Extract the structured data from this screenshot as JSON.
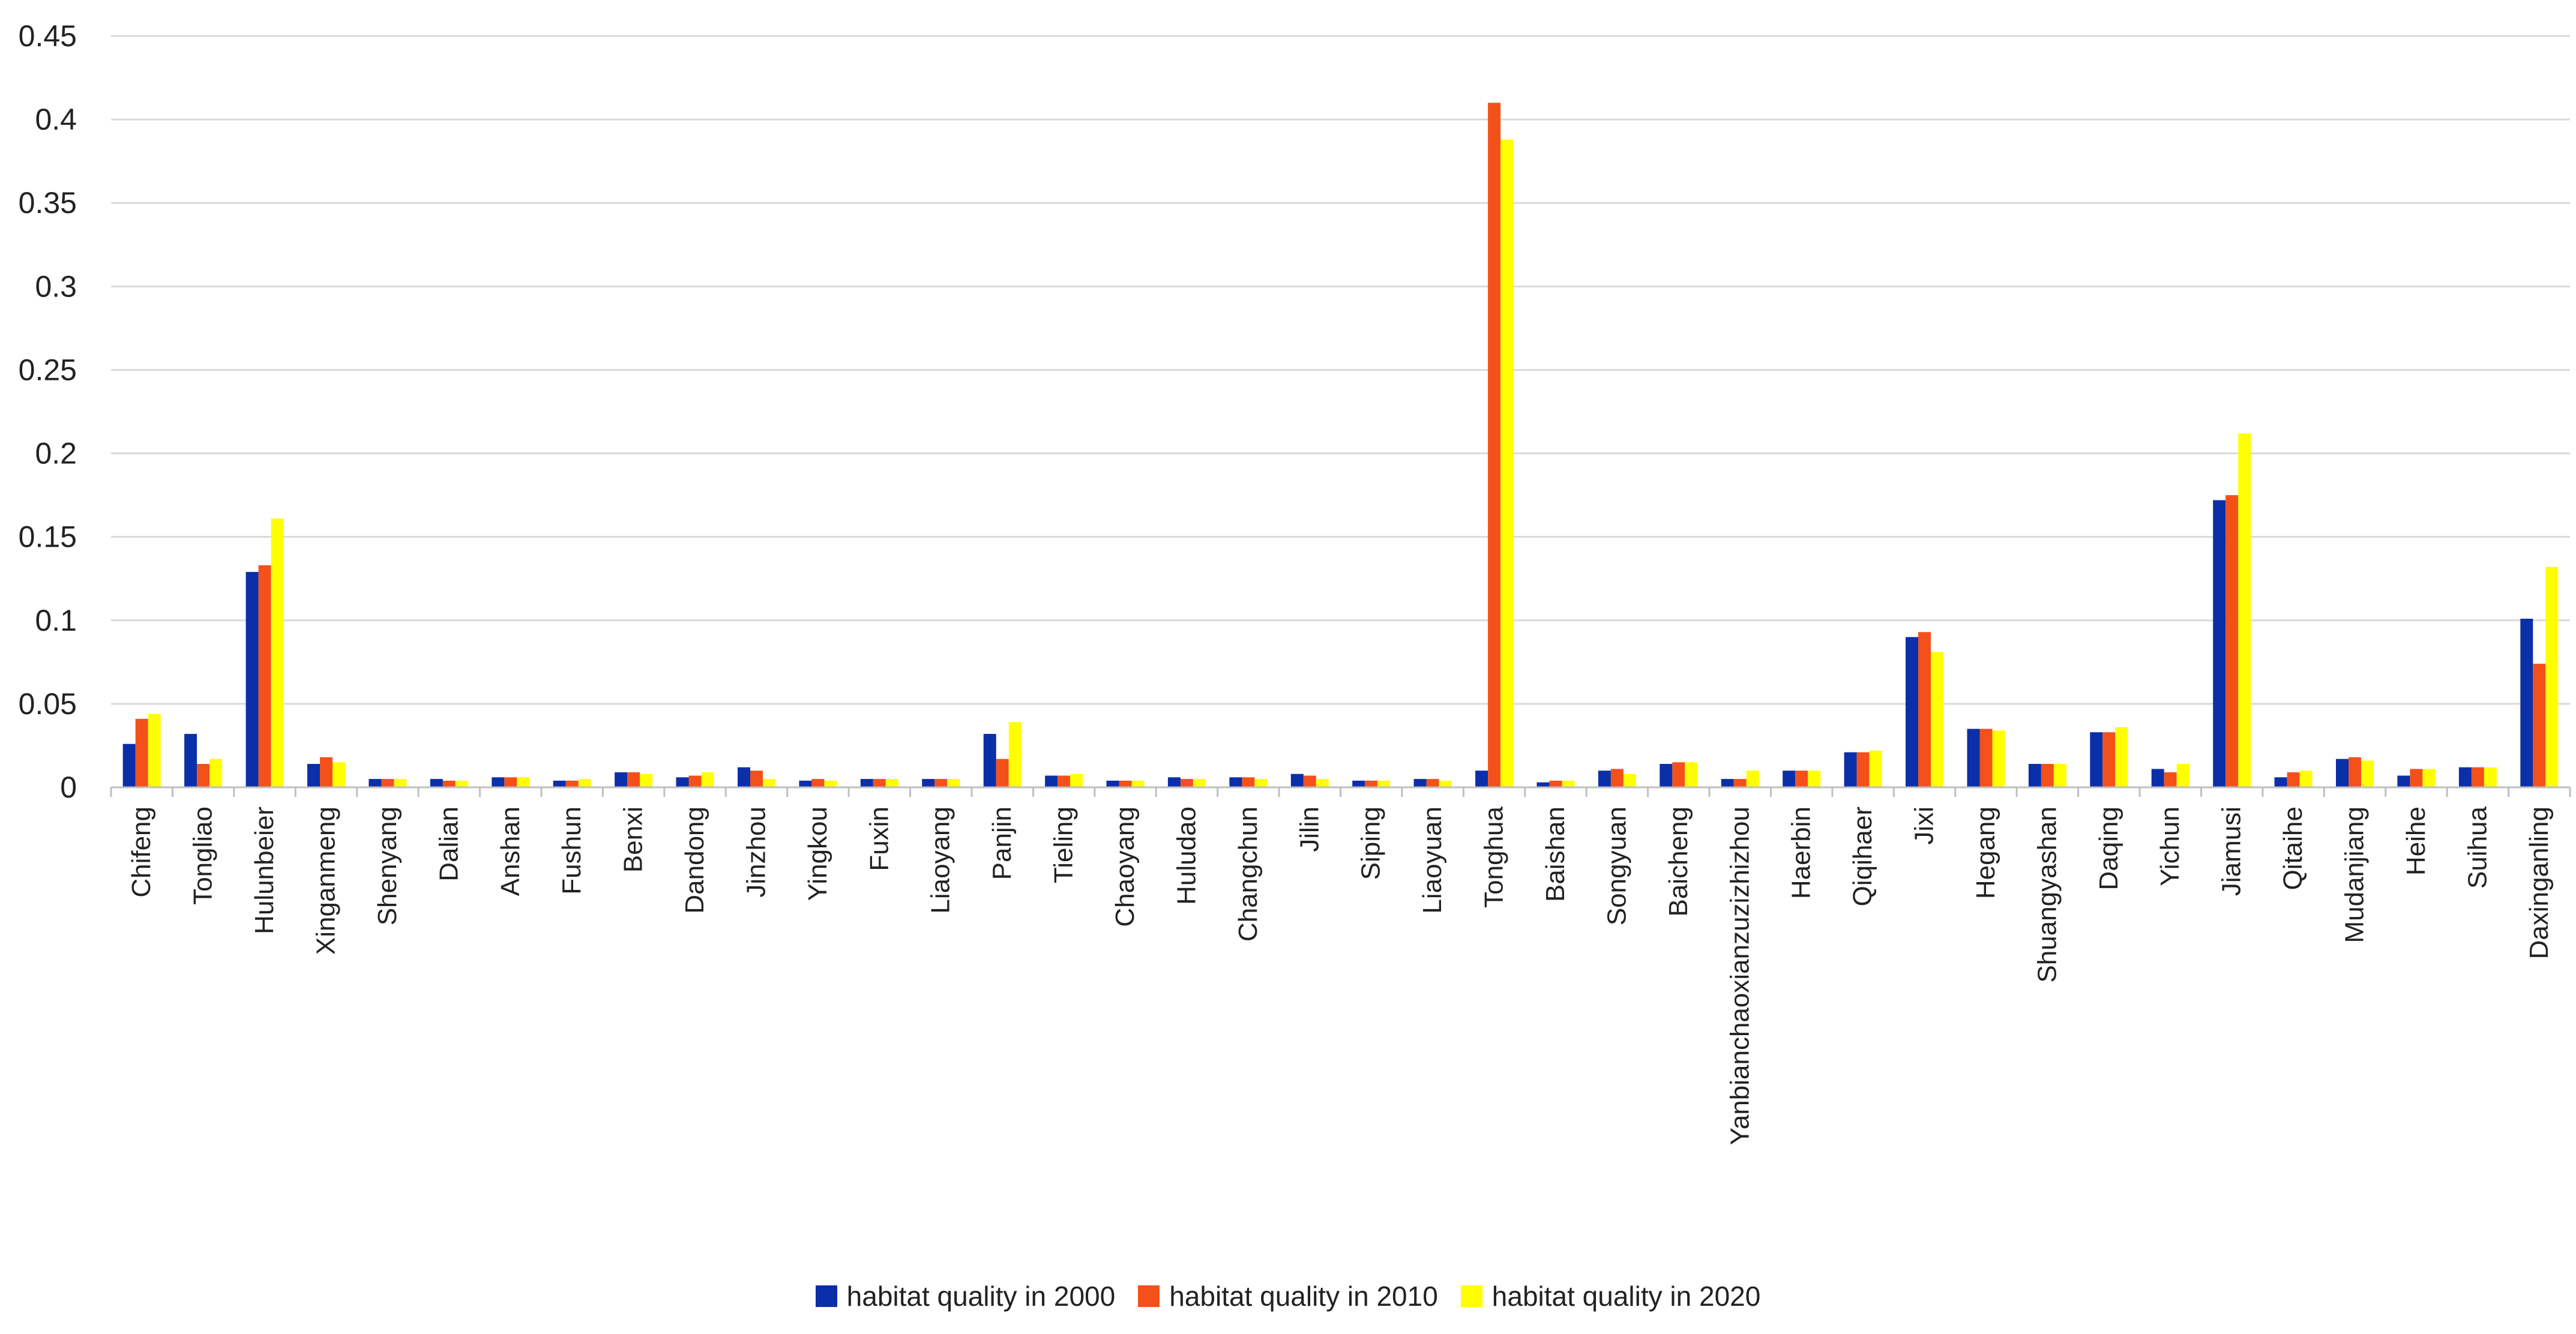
{
  "chart_data": {
    "type": "bar",
    "categories": [
      "Chifeng",
      "Tongliao",
      "Hulunbeier",
      "Xinganmeng",
      "Shenyang",
      "Dalian",
      "Anshan",
      "Fushun",
      "Benxi",
      "Dandong",
      "Jinzhou",
      "Yingkou",
      "Fuxin",
      "Liaoyang",
      "Panjin",
      "Tieling",
      "Chaoyang",
      "Huludao",
      "Changchun",
      "Jilin",
      "Siping",
      "Liaoyuan",
      "Tonghua",
      "Baishan",
      "Songyuan",
      "Baicheng",
      "Yanbianchaoxianzuzizhizhou",
      "Haerbin",
      "Qiqihaer",
      "Jixi",
      "Hegang",
      "Shuangyashan",
      "Daqing",
      "Yichun",
      "Jiamusi",
      "Qitaihe",
      "Mudanjiang",
      "Heihe",
      "Suihua",
      "Daxinganling"
    ],
    "series": [
      {
        "name": "habitat quality in 2000",
        "color": "#0b2fa8",
        "values": [
          0.026,
          0.032,
          0.129,
          0.014,
          0.005,
          0.005,
          0.006,
          0.004,
          0.009,
          0.006,
          0.012,
          0.004,
          0.005,
          0.005,
          0.032,
          0.007,
          0.004,
          0.006,
          0.006,
          0.008,
          0.004,
          0.005,
          0.01,
          0.003,
          0.01,
          0.014,
          0.005,
          0.01,
          0.021,
          0.09,
          0.035,
          0.014,
          0.033,
          0.011,
          0.172,
          0.006,
          0.017,
          0.007,
          0.012,
          0.101
        ]
      },
      {
        "name": "habitat quality in 2010",
        "color": "#f4501a",
        "values": [
          0.041,
          0.014,
          0.133,
          0.018,
          0.005,
          0.004,
          0.006,
          0.004,
          0.009,
          0.007,
          0.01,
          0.005,
          0.005,
          0.005,
          0.017,
          0.007,
          0.004,
          0.005,
          0.006,
          0.007,
          0.004,
          0.005,
          0.41,
          0.004,
          0.011,
          0.015,
          0.005,
          0.01,
          0.021,
          0.093,
          0.035,
          0.014,
          0.033,
          0.009,
          0.175,
          0.009,
          0.018,
          0.011,
          0.012,
          0.074
        ]
      },
      {
        "name": "habitat quality in 2020",
        "color": "#ffff00",
        "values": [
          0.044,
          0.017,
          0.161,
          0.015,
          0.005,
          0.004,
          0.006,
          0.005,
          0.008,
          0.009,
          0.005,
          0.004,
          0.005,
          0.005,
          0.039,
          0.008,
          0.004,
          0.005,
          0.005,
          0.005,
          0.004,
          0.004,
          0.388,
          0.004,
          0.008,
          0.015,
          0.01,
          0.01,
          0.022,
          0.081,
          0.034,
          0.014,
          0.036,
          0.014,
          0.212,
          0.01,
          0.016,
          0.011,
          0.012,
          0.132
        ]
      }
    ],
    "yticks": [
      "0",
      "0.05",
      "0.1",
      "0.15",
      "0.2",
      "0.25",
      "0.3",
      "0.35",
      "0.4",
      "0.45"
    ],
    "ylim": [
      0,
      0.45
    ],
    "grid": true,
    "legend_position": "bottom-center"
  }
}
